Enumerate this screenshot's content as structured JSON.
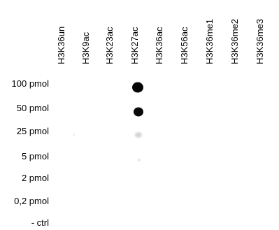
{
  "columns": [
    "H3K36un",
    "H3K9ac",
    "H3K23ac",
    "H3K27ac",
    "H3K36ac",
    "H3K56ac",
    "H3K36me1",
    "H3K36me2",
    "H3K36me3"
  ],
  "rows": [
    "100 pmol",
    "50 pmol",
    "25 pmol",
    "5 pmol",
    "2 pmol",
    "0,2 pmol",
    "- ctrl"
  ]
}
